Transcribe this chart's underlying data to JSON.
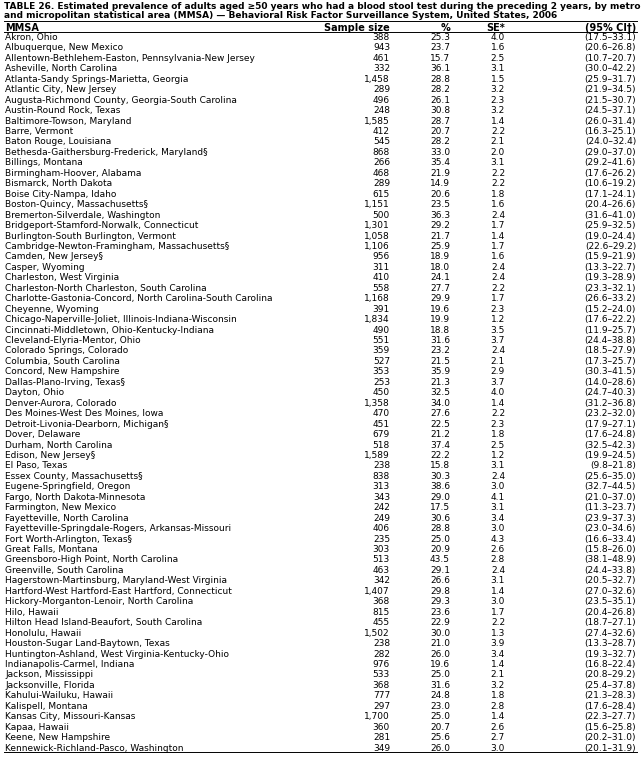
{
  "title_line1": "TABLE 26. Estimated prevalence of adults aged ≥50 years who had a blood stool test during the preceding 2 years, by metropolitan",
  "title_line2": "and micropolitan statistical area (MMSA) — Behavioral Risk Factor Surveillance System, United States, 2006",
  "col_headers": [
    "MMSA",
    "Sample size",
    "%",
    "SE*",
    "(95% CI†)"
  ],
  "rows": [
    [
      "Akron, Ohio",
      "388",
      "25.3",
      "4.0",
      "(17.5–33.1)"
    ],
    [
      "Albuquerque, New Mexico",
      "943",
      "23.7",
      "1.6",
      "(20.6–26.8)"
    ],
    [
      "Allentown-Bethlehem-Easton, Pennsylvania-New Jersey",
      "461",
      "15.7",
      "2.5",
      "(10.7–20.7)"
    ],
    [
      "Asheville, North Carolina",
      "332",
      "36.1",
      "3.1",
      "(30.0–42.2)"
    ],
    [
      "Atlanta-Sandy Springs-Marietta, Georgia",
      "1,458",
      "28.8",
      "1.5",
      "(25.9–31.7)"
    ],
    [
      "Atlantic City, New Jersey",
      "289",
      "28.2",
      "3.2",
      "(21.9–34.5)"
    ],
    [
      "Augusta-Richmond County, Georgia-South Carolina",
      "496",
      "26.1",
      "2.3",
      "(21.5–30.7)"
    ],
    [
      "Austin-Round Rock, Texas",
      "248",
      "30.8",
      "3.2",
      "(24.5–37.1)"
    ],
    [
      "Baltimore-Towson, Maryland",
      "1,585",
      "28.7",
      "1.4",
      "(26.0–31.4)"
    ],
    [
      "Barre, Vermont",
      "412",
      "20.7",
      "2.2",
      "(16.3–25.1)"
    ],
    [
      "Baton Rouge, Louisiana",
      "545",
      "28.2",
      "2.1",
      "(24.0–32.4)"
    ],
    [
      "Bethesda-Gaithersburg-Frederick, Maryland§",
      "868",
      "33.0",
      "2.0",
      "(29.0–37.0)"
    ],
    [
      "Billings, Montana",
      "266",
      "35.4",
      "3.1",
      "(29.2–41.6)"
    ],
    [
      "Birmingham-Hoover, Alabama",
      "468",
      "21.9",
      "2.2",
      "(17.6–26.2)"
    ],
    [
      "Bismarck, North Dakota",
      "289",
      "14.9",
      "2.2",
      "(10.6–19.2)"
    ],
    [
      "Boise City-Nampa, Idaho",
      "615",
      "20.6",
      "1.8",
      "(17.1–24.1)"
    ],
    [
      "Boston-Quincy, Massachusetts§",
      "1,151",
      "23.5",
      "1.6",
      "(20.4–26.6)"
    ],
    [
      "Bremerton-Silverdale, Washington",
      "500",
      "36.3",
      "2.4",
      "(31.6–41.0)"
    ],
    [
      "Bridgeport-Stamford-Norwalk, Connecticut",
      "1,301",
      "29.2",
      "1.7",
      "(25.9–32.5)"
    ],
    [
      "Burlington-South Burlington, Vermont",
      "1,058",
      "21.7",
      "1.4",
      "(19.0–24.4)"
    ],
    [
      "Cambridge-Newton-Framingham, Massachusetts§",
      "1,106",
      "25.9",
      "1.7",
      "(22.6–29.2)"
    ],
    [
      "Camden, New Jersey§",
      "956",
      "18.9",
      "1.6",
      "(15.9–21.9)"
    ],
    [
      "Casper, Wyoming",
      "311",
      "18.0",
      "2.4",
      "(13.3–22.7)"
    ],
    [
      "Charleston, West Virginia",
      "410",
      "24.1",
      "2.4",
      "(19.3–28.9)"
    ],
    [
      "Charleston-North Charleston, South Carolina",
      "558",
      "27.7",
      "2.2",
      "(23.3–32.1)"
    ],
    [
      "Charlotte-Gastonia-Concord, North Carolina-South Carolina",
      "1,168",
      "29.9",
      "1.7",
      "(26.6–33.2)"
    ],
    [
      "Cheyenne, Wyoming",
      "391",
      "19.6",
      "2.3",
      "(15.2–24.0)"
    ],
    [
      "Chicago-Naperville-Joliet, Illinois-Indiana-Wisconsin",
      "1,834",
      "19.9",
      "1.2",
      "(17.6–22.2)"
    ],
    [
      "Cincinnati-Middletown, Ohio-Kentucky-Indiana",
      "490",
      "18.8",
      "3.5",
      "(11.9–25.7)"
    ],
    [
      "Cleveland-Elyria-Mentor, Ohio",
      "551",
      "31.6",
      "3.7",
      "(24.4–38.8)"
    ],
    [
      "Colorado Springs, Colorado",
      "359",
      "23.2",
      "2.4",
      "(18.5–27.9)"
    ],
    [
      "Columbia, South Carolina",
      "527",
      "21.5",
      "2.1",
      "(17.3–25.7)"
    ],
    [
      "Concord, New Hampshire",
      "353",
      "35.9",
      "2.9",
      "(30.3–41.5)"
    ],
    [
      "Dallas-Plano-Irving, Texas§",
      "253",
      "21.3",
      "3.7",
      "(14.0–28.6)"
    ],
    [
      "Dayton, Ohio",
      "450",
      "32.5",
      "4.0",
      "(24.7–40.3)"
    ],
    [
      "Denver-Aurora, Colorado",
      "1,358",
      "34.0",
      "1.4",
      "(31.2–36.8)"
    ],
    [
      "Des Moines-West Des Moines, Iowa",
      "470",
      "27.6",
      "2.2",
      "(23.2–32.0)"
    ],
    [
      "Detroit-Livonia-Dearborn, Michigan§",
      "451",
      "22.5",
      "2.3",
      "(17.9–27.1)"
    ],
    [
      "Dover, Delaware",
      "679",
      "21.2",
      "1.8",
      "(17.6–24.8)"
    ],
    [
      "Durham, North Carolina",
      "518",
      "37.4",
      "2.5",
      "(32.5–42.3)"
    ],
    [
      "Edison, New Jersey§",
      "1,589",
      "22.2",
      "1.2",
      "(19.9–24.5)"
    ],
    [
      "El Paso, Texas",
      "238",
      "15.8",
      "3.1",
      "(9.8–21.8)"
    ],
    [
      "Essex County, Massachusetts§",
      "838",
      "30.3",
      "2.4",
      "(25.6–35.0)"
    ],
    [
      "Eugene-Springfield, Oregon",
      "313",
      "38.6",
      "3.0",
      "(32.7–44.5)"
    ],
    [
      "Fargo, North Dakota-Minnesota",
      "343",
      "29.0",
      "4.1",
      "(21.0–37.0)"
    ],
    [
      "Farmington, New Mexico",
      "242",
      "17.5",
      "3.1",
      "(11.3–23.7)"
    ],
    [
      "Fayetteville, North Carolina",
      "249",
      "30.6",
      "3.4",
      "(23.9–37.3)"
    ],
    [
      "Fayetteville-Springdale-Rogers, Arkansas-Missouri",
      "406",
      "28.8",
      "3.0",
      "(23.0–34.6)"
    ],
    [
      "Fort Worth-Arlington, Texas§",
      "235",
      "25.0",
      "4.3",
      "(16.6–33.4)"
    ],
    [
      "Great Falls, Montana",
      "303",
      "20.9",
      "2.6",
      "(15.8–26.0)"
    ],
    [
      "Greensboro-High Point, North Carolina",
      "513",
      "43.5",
      "2.8",
      "(38.1–48.9)"
    ],
    [
      "Greenville, South Carolina",
      "463",
      "29.1",
      "2.4",
      "(24.4–33.8)"
    ],
    [
      "Hagerstown-Martinsburg, Maryland-West Virginia",
      "342",
      "26.6",
      "3.1",
      "(20.5–32.7)"
    ],
    [
      "Hartford-West Hartford-East Hartford, Connecticut",
      "1,407",
      "29.8",
      "1.4",
      "(27.0–32.6)"
    ],
    [
      "Hickory-Morganton-Lenoir, North Carolina",
      "368",
      "29.3",
      "3.0",
      "(23.5–35.1)"
    ],
    [
      "Hilo, Hawaii",
      "815",
      "23.6",
      "1.7",
      "(20.4–26.8)"
    ],
    [
      "Hilton Head Island-Beaufort, South Carolina",
      "455",
      "22.9",
      "2.2",
      "(18.7–27.1)"
    ],
    [
      "Honolulu, Hawaii",
      "1,502",
      "30.0",
      "1.3",
      "(27.4–32.6)"
    ],
    [
      "Houston-Sugar Land-Baytown, Texas",
      "238",
      "21.0",
      "3.9",
      "(13.3–28.7)"
    ],
    [
      "Huntington-Ashland, West Virginia-Kentucky-Ohio",
      "282",
      "26.0",
      "3.4",
      "(19.3–32.7)"
    ],
    [
      "Indianapolis-Carmel, Indiana",
      "976",
      "19.6",
      "1.4",
      "(16.8–22.4)"
    ],
    [
      "Jackson, Mississippi",
      "533",
      "25.0",
      "2.1",
      "(20.8–29.2)"
    ],
    [
      "Jacksonville, Florida",
      "368",
      "31.6",
      "3.2",
      "(25.4–37.8)"
    ],
    [
      "Kahului-Wailuku, Hawaii",
      "777",
      "24.8",
      "1.8",
      "(21.3–28.3)"
    ],
    [
      "Kalispell, Montana",
      "297",
      "23.0",
      "2.8",
      "(17.6–28.4)"
    ],
    [
      "Kansas City, Missouri-Kansas",
      "1,700",
      "25.0",
      "1.4",
      "(22.3–27.7)"
    ],
    [
      "Kapaa, Hawaii",
      "360",
      "20.7",
      "2.6",
      "(15.6–25.8)"
    ],
    [
      "Keene, New Hampshire",
      "281",
      "25.6",
      "2.7",
      "(20.2–31.0)"
    ],
    [
      "Kennewick-Richland-Pasco, Washington",
      "349",
      "26.0",
      "3.0",
      "(20.1–31.9)"
    ]
  ],
  "title_fontsize": 6.5,
  "header_fontsize": 7.0,
  "row_fontsize": 6.5,
  "bg_color": "white",
  "line_color": "black"
}
